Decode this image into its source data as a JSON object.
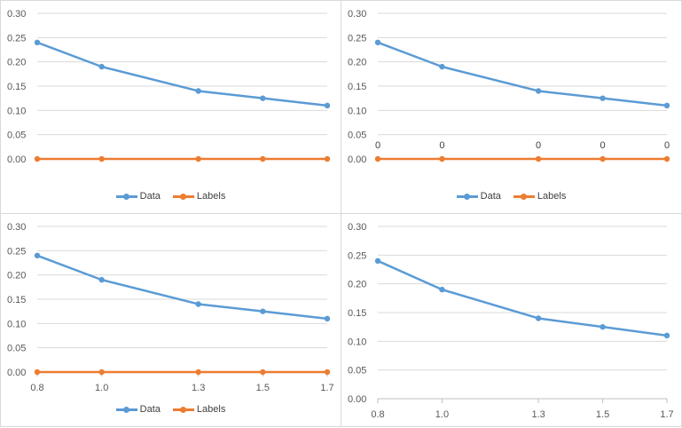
{
  "chart_data": [
    {
      "type": "line",
      "x": [
        0.8,
        1.0,
        1.3,
        1.5,
        1.7
      ],
      "series": [
        {
          "name": "Data",
          "values": [
            0.24,
            0.19,
            0.14,
            0.125,
            0.11
          ],
          "color": "#5b9bd5"
        },
        {
          "name": "Labels",
          "values": [
            0,
            0,
            0,
            0,
            0
          ],
          "color": "#ed7d31"
        }
      ],
      "ylim": [
        0,
        0.3
      ],
      "yticks": [
        "0.00",
        "0.05",
        "0.10",
        "0.15",
        "0.20",
        "0.25",
        "0.30"
      ],
      "xtick_labels": [],
      "point_labels": [],
      "legend": "bottom",
      "grid": "horizontal"
    },
    {
      "type": "line",
      "x": [
        0.8,
        1.0,
        1.3,
        1.5,
        1.7
      ],
      "series": [
        {
          "name": "Data",
          "values": [
            0.24,
            0.19,
            0.14,
            0.125,
            0.11
          ],
          "color": "#5b9bd5"
        },
        {
          "name": "Labels",
          "values": [
            0,
            0,
            0,
            0,
            0
          ],
          "color": "#ed7d31"
        }
      ],
      "ylim": [
        0,
        0.3
      ],
      "yticks": [
        "0.00",
        "0.05",
        "0.10",
        "0.15",
        "0.20",
        "0.25",
        "0.30"
      ],
      "xtick_labels": [],
      "point_labels": [
        "0",
        "0",
        "0",
        "0",
        "0"
      ],
      "legend": "bottom",
      "grid": "horizontal"
    },
    {
      "type": "line",
      "x": [
        0.8,
        1.0,
        1.3,
        1.5,
        1.7
      ],
      "series": [
        {
          "name": "Data",
          "values": [
            0.24,
            0.19,
            0.14,
            0.125,
            0.11
          ],
          "color": "#5b9bd5"
        },
        {
          "name": "Labels",
          "values": [
            0,
            0,
            0,
            0,
            0
          ],
          "color": "#ed7d31"
        }
      ],
      "ylim": [
        0,
        0.3
      ],
      "yticks": [
        "0.00",
        "0.05",
        "0.10",
        "0.15",
        "0.20",
        "0.25",
        "0.30"
      ],
      "xtick_labels": [
        "0.8",
        "1.0",
        "1.3",
        "1.5",
        "1.7"
      ],
      "point_labels": [],
      "legend": "bottom",
      "grid": "horizontal"
    },
    {
      "type": "line",
      "x": [
        0.8,
        1.0,
        1.3,
        1.5,
        1.7
      ],
      "series": [
        {
          "name": "Data",
          "values": [
            0.24,
            0.19,
            0.14,
            0.125,
            0.11
          ],
          "color": "#5b9bd5"
        }
      ],
      "ylim": [
        0,
        0.3
      ],
      "yticks": [
        "0.00",
        "0.05",
        "0.10",
        "0.15",
        "0.20",
        "0.25",
        "0.30"
      ],
      "xtick_labels": [
        "0.8",
        "1.0",
        "1.3",
        "1.5",
        "1.7"
      ],
      "point_labels": [],
      "legend": "none",
      "grid": "horizontal"
    }
  ]
}
